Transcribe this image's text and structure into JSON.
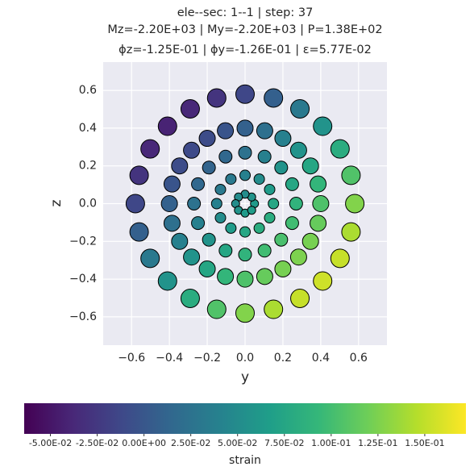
{
  "chart_data": {
    "type": "scatter",
    "title": "ele--sec: 1--1 | step: 37",
    "subtitle": "Mz=-2.20E+03 | My=-2.20E+03 | P=1.38E+02",
    "subtitle2": "ϕz=-1.25E-01 | ϕy=-1.26E-01 | ε=5.77E-02",
    "x_label": "y",
    "y_label": "z",
    "xlim": [
      -0.75,
      0.75
    ],
    "ylim": [
      -0.75,
      0.75
    ],
    "xticks": [
      {
        "value": -0.6,
        "label": "−0.6"
      },
      {
        "value": -0.4,
        "label": "−0.4"
      },
      {
        "value": -0.2,
        "label": "−0.2"
      },
      {
        "value": 0,
        "label": "0.0"
      },
      0.2,
      0.4,
      0.6
    ],
    "yticks": [
      {
        "value": -0.6,
        "label": "−0.6"
      },
      {
        "value": -0.4,
        "label": "−0.4"
      },
      {
        "value": -0.2,
        "label": "−0.2"
      },
      {
        "value": 0,
        "label": "0.0"
      },
      0.2,
      0.4,
      0.6
    ],
    "grid": true,
    "colormap": "viridis",
    "colorbar_label": "strain",
    "clim": [
      -0.064,
      0.172
    ],
    "cticks": [
      {
        "value": -0.05,
        "label": "-5.00E-02"
      },
      {
        "value": -0.025,
        "label": "-2.50E-02"
      },
      {
        "value": 0,
        "label": "0.00E+00"
      },
      {
        "value": 0.025,
        "label": "2.50E-02"
      },
      {
        "value": 0.05,
        "label": "5.00E-02"
      },
      {
        "value": 0.075,
        "label": "7.50E-02"
      },
      {
        "value": 0.1,
        "label": "1.00E-01"
      },
      {
        "value": 0.125,
        "label": "1.25E-01"
      },
      {
        "value": 0.15,
        "label": "1.50E-01"
      }
    ],
    "x": [
      0.05,
      0.035,
      0,
      -0.035,
      -0.05,
      -0.035,
      0,
      0.035,
      0.15,
      0.13,
      0.075,
      0,
      -0.075,
      -0.13,
      -0.15,
      -0.13,
      -0.075,
      0,
      0.075,
      0.13,
      0.27,
      0.249,
      0.191,
      0.103,
      0,
      -0.103,
      -0.191,
      -0.249,
      -0.27,
      -0.249,
      -0.191,
      -0.103,
      0,
      0.103,
      0.191,
      0.249,
      0.4,
      0.386,
      0.346,
      0.283,
      0.2,
      0.104,
      0,
      -0.104,
      -0.2,
      -0.283,
      -0.346,
      -0.386,
      -0.4,
      -0.386,
      -0.346,
      -0.283,
      -0.2,
      -0.104,
      0,
      0.104,
      0.2,
      0.283,
      0.346,
      0.386,
      0.58,
      0.56,
      0.502,
      0.41,
      0.29,
      0.15,
      0,
      -0.15,
      -0.29,
      -0.41,
      -0.502,
      -0.56,
      -0.58,
      -0.56,
      -0.502,
      -0.41,
      -0.29,
      -0.15,
      0,
      0.15,
      0.29,
      0.41,
      0.502,
      0.56
    ],
    "y": [
      0,
      0.035,
      0.05,
      0.035,
      0,
      -0.035,
      -0.05,
      -0.035,
      0,
      0.075,
      0.13,
      0.15,
      0.13,
      0.075,
      0,
      -0.075,
      -0.13,
      -0.15,
      -0.13,
      -0.075,
      0,
      0.103,
      0.191,
      0.249,
      0.27,
      0.249,
      0.191,
      0.103,
      0,
      -0.103,
      -0.191,
      -0.249,
      -0.27,
      -0.249,
      -0.191,
      -0.103,
      0,
      0.104,
      0.2,
      0.283,
      0.346,
      0.386,
      0.4,
      0.386,
      0.346,
      0.283,
      0.2,
      0.104,
      0,
      -0.104,
      -0.2,
      -0.283,
      -0.346,
      -0.386,
      -0.4,
      -0.386,
      -0.346,
      -0.283,
      -0.2,
      -0.104,
      0,
      0.15,
      0.29,
      0.41,
      0.502,
      0.56,
      0.58,
      0.56,
      0.502,
      0.41,
      0.29,
      0.15,
      0,
      -0.15,
      -0.29,
      -0.41,
      -0.502,
      -0.56,
      -0.58,
      -0.56,
      -0.502,
      -0.41,
      -0.29,
      -0.15
    ],
    "values": [
      0.063,
      0.057,
      0.051,
      0.049,
      0.051,
      0.057,
      0.063,
      0.065,
      0.075,
      0.064,
      0.05,
      0.039,
      0.032,
      0.032,
      0.039,
      0.05,
      0.064,
      0.075,
      0.082,
      0.082,
      0.089,
      0.075,
      0.057,
      0.039,
      0.025,
      0.015,
      0.011,
      0.015,
      0.025,
      0.039,
      0.057,
      0.075,
      0.089,
      0.099,
      0.103,
      0.099,
      0.105,
      0.091,
      0.075,
      0.057,
      0.039,
      0.023,
      0.009,
      -0.002,
      -0.009,
      -0.011,
      -0.009,
      -0.002,
      0.009,
      0.023,
      0.039,
      0.057,
      0.075,
      0.091,
      0.105,
      0.116,
      0.123,
      0.125,
      0.123,
      0.116,
      0.127,
      0.106,
      0.082,
      0.057,
      0.032,
      0.008,
      -0.013,
      -0.028,
      -0.038,
      -0.041,
      -0.038,
      -0.028,
      -0.013,
      0.008,
      0.032,
      0.057,
      0.082,
      0.106,
      0.127,
      0.142,
      0.152,
      0.155,
      0.152,
      0.142
    ]
  }
}
